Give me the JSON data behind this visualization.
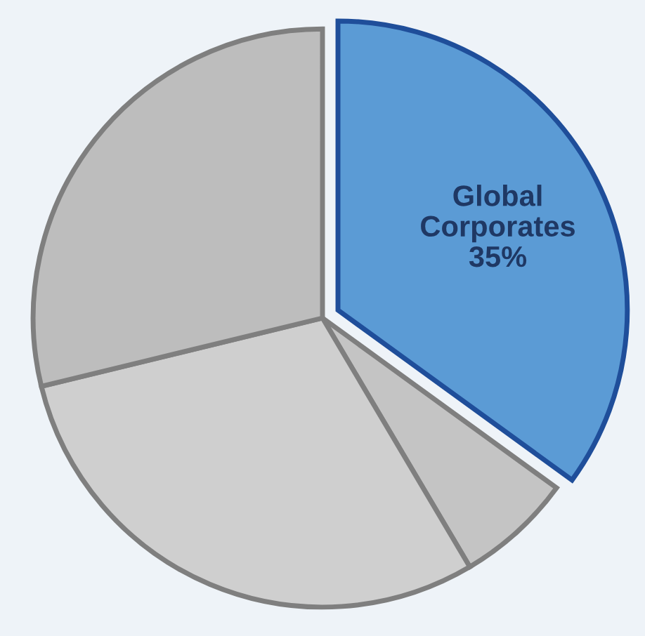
{
  "chart_data": {
    "type": "pie",
    "categories": [
      "Global Corporates",
      null,
      null,
      null
    ],
    "values": [
      35,
      6.5,
      29.7,
      28.8
    ],
    "value_labels": [
      "35%",
      null,
      null,
      null
    ],
    "colors": [
      "#5b9bd5",
      "#c4c4c4",
      "#cfcfcf",
      "#bdbdbd"
    ]
  }
}
